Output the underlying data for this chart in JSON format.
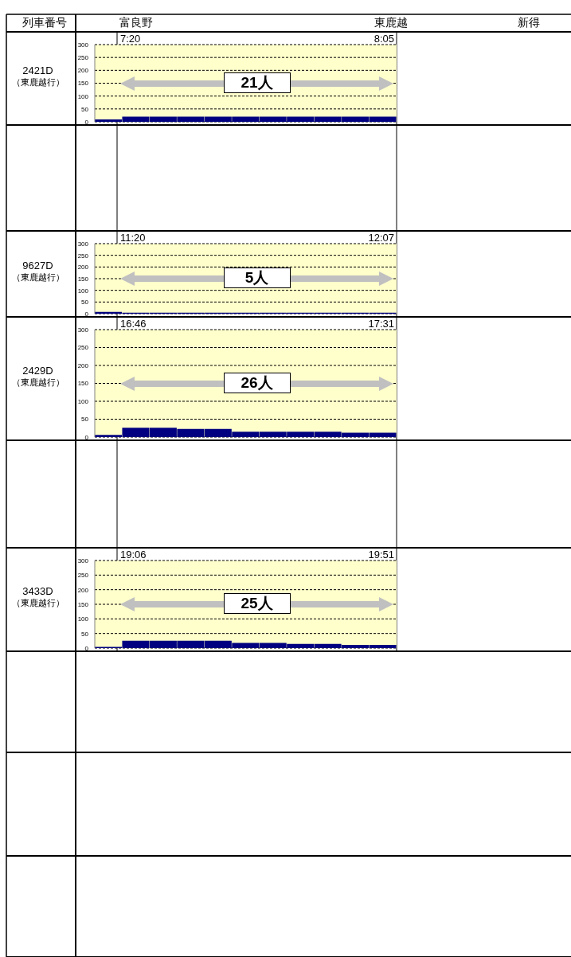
{
  "chart_data": [
    {
      "type": "other",
      "annotations": [
        "列車番号",
        "富良野",
        "東鹿越",
        "新得"
      ]
    },
    {
      "type": "bar",
      "title": "2421D",
      "subtitle": "（東鹿越行）",
      "categories": [
        null,
        null,
        null,
        null,
        null,
        null,
        null,
        null,
        null,
        null,
        null
      ],
      "values": [
        9,
        20,
        20,
        20,
        20,
        20,
        20,
        20,
        20,
        20,
        20
      ],
      "color": "#000080",
      "ylim": [
        0,
        300
      ],
      "yticks": [
        0,
        50,
        100,
        150,
        200,
        250,
        300
      ],
      "grid": "y",
      "tick_labels": "y",
      "annotations": [
        "7:20",
        "8:05",
        "21人"
      ]
    },
    {
      "type": "bar",
      "title": "9627D",
      "subtitle": "（東鹿越行）",
      "categories": [
        null,
        null,
        null,
        null,
        null,
        null,
        null,
        null,
        null,
        null,
        null
      ],
      "values": [
        8,
        4,
        4,
        4,
        4,
        4,
        4,
        4,
        4,
        4,
        4
      ],
      "color": "#000080",
      "ylim": [
        0,
        300
      ],
      "yticks": [
        0,
        50,
        100,
        150,
        200,
        250,
        300
      ],
      "grid": "y",
      "tick_labels": "y",
      "annotations": [
        "11:20",
        "12:07",
        "5人"
      ]
    },
    {
      "type": "bar",
      "title": "2429D",
      "subtitle": "（東鹿越行）",
      "categories": [
        null,
        null,
        null,
        null,
        null,
        null,
        null,
        null,
        null,
        null,
        null
      ],
      "values": [
        6,
        26,
        26,
        23,
        23,
        15,
        15,
        15,
        15,
        12,
        12
      ],
      "color": "#000080",
      "ylim": [
        0,
        300
      ],
      "yticks": [
        0,
        50,
        100,
        150,
        200,
        250,
        300
      ],
      "grid": "y",
      "tick_labels": "y",
      "annotations": [
        "16:46",
        "17:31",
        "26人"
      ]
    },
    {
      "type": "bar",
      "title": "3433D",
      "subtitle": "（東鹿越行）",
      "categories": [
        null,
        null,
        null,
        null,
        null,
        null,
        null,
        null,
        null,
        null,
        null
      ],
      "values": [
        4,
        25,
        25,
        25,
        25,
        18,
        18,
        14,
        14,
        11,
        11
      ],
      "color": "#000080",
      "ylim": [
        0,
        300
      ],
      "yticks": [
        0,
        50,
        100,
        150,
        200,
        250,
        300
      ],
      "grid": "y",
      "tick_labels": "y",
      "annotations": [
        "19:06",
        "19:51",
        "25人"
      ]
    }
  ]
}
